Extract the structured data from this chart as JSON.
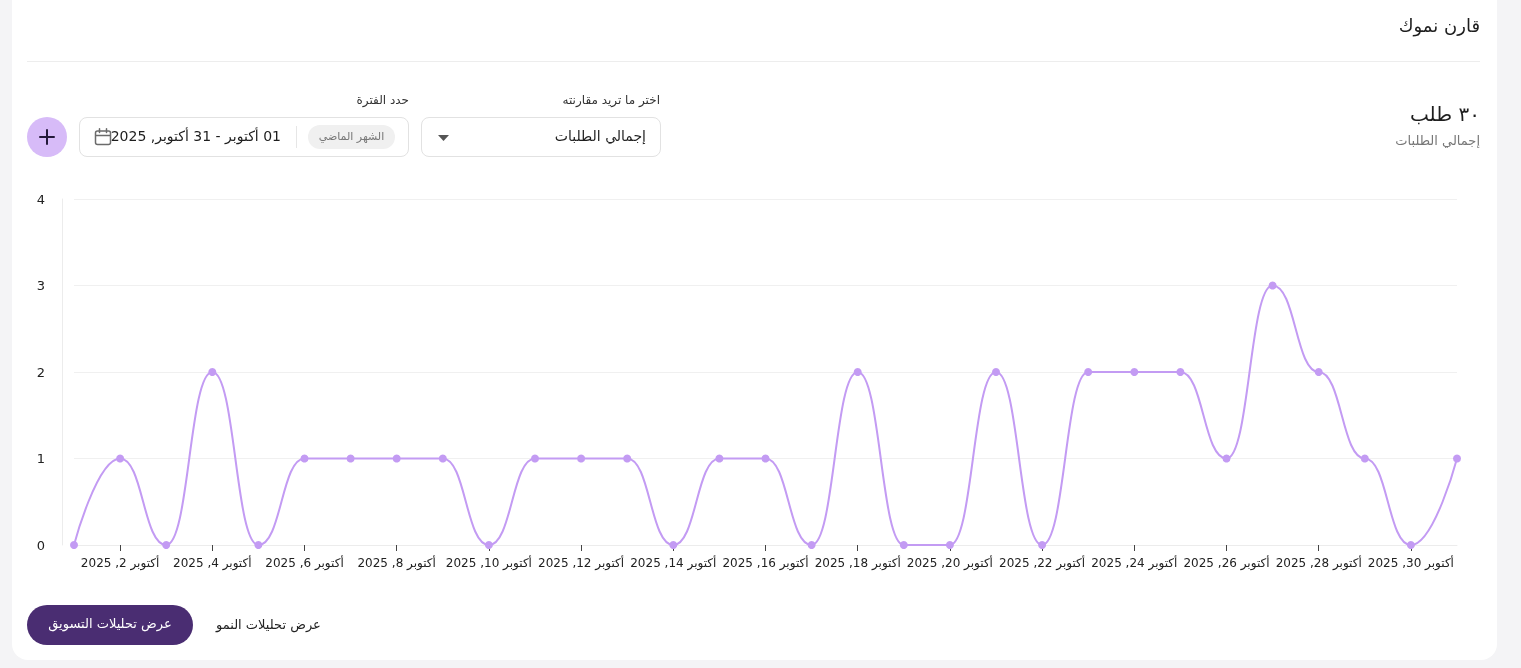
{
  "chart_data": {
    "type": "line",
    "title": "قارن نموك",
    "subtitle": "٣٠ طلب",
    "categories": [
      null,
      "أكتوبر 2, 2025",
      null,
      "أكتوبر 4, 2025",
      null,
      "أكتوبر 6, 2025",
      null,
      "أكتوبر 8, 2025",
      null,
      "أكتوبر 10, 2025",
      null,
      "أكتوبر 12, 2025",
      null,
      "أكتوبر 14, 2025",
      null,
      "أكتوبر 16, 2025",
      null,
      "أكتوبر 18, 2025",
      null,
      "أكتوبر 20, 2025",
      null,
      "أكتوبر 22, 2025",
      null,
      "أكتوبر 24, 2025",
      null,
      "أكتوبر 26, 2025",
      null,
      "أكتوبر 28, 2025",
      null,
      "أكتوبر 30, 2025",
      null
    ],
    "values": [
      0,
      1,
      0,
      2,
      0,
      1,
      1,
      1,
      1,
      0,
      1,
      1,
      1,
      0,
      1,
      1,
      0,
      2,
      0,
      0,
      2,
      0,
      2,
      2,
      2,
      1,
      3,
      2,
      1,
      0,
      1
    ],
    "color": "#c39bf3",
    "ylim": [
      0,
      4
    ],
    "yticks": [
      0,
      1,
      2,
      3,
      4
    ],
    "grid": "y",
    "marker": "circle",
    "line_style": "solid",
    "annotations": [
      "إجمالي الطلبات",
      "اختر ما تريد مقارنته",
      "إجمالي الطلبات",
      "حدد الفترة",
      "الشهر الماضي",
      "01 أكتوبر - 31 أكتوبر, 2025",
      "عرض تحليلات التسويق",
      "عرض تحليلات النمو"
    ]
  }
}
